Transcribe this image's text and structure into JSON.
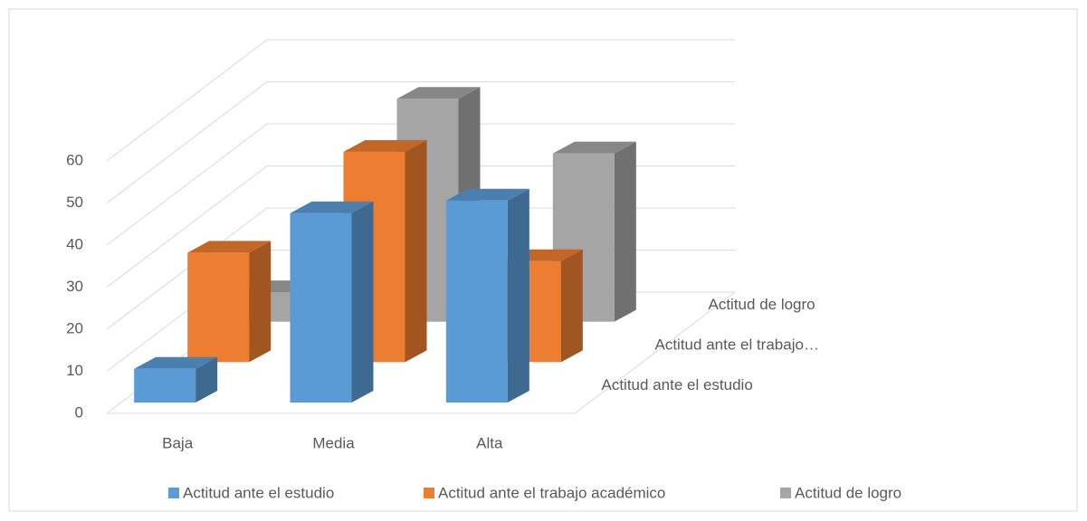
{
  "chart_data": {
    "type": "bar3d",
    "categories": [
      "Baja",
      "Media",
      "Alta"
    ],
    "series": [
      {
        "name": "Actitud ante el estudio",
        "color": "#5b9bd5",
        "values": [
          8,
          45,
          48
        ]
      },
      {
        "name": "Actitud ante el trabajo académico",
        "color": "#ed7d31",
        "values": [
          26,
          50,
          24
        ]
      },
      {
        "name": "Actitud de logro",
        "color": "#a5a5a5",
        "values": [
          7,
          53,
          40
        ]
      }
    ],
    "depth_labels": [
      "Actitud ante el estudio",
      "Actitud ante el trabajo…",
      "Actitud de logro"
    ],
    "ylim": [
      0,
      60
    ],
    "yticks": [
      0,
      10,
      20,
      30,
      40,
      50,
      60
    ],
    "grid": true,
    "legend": "bottom"
  }
}
